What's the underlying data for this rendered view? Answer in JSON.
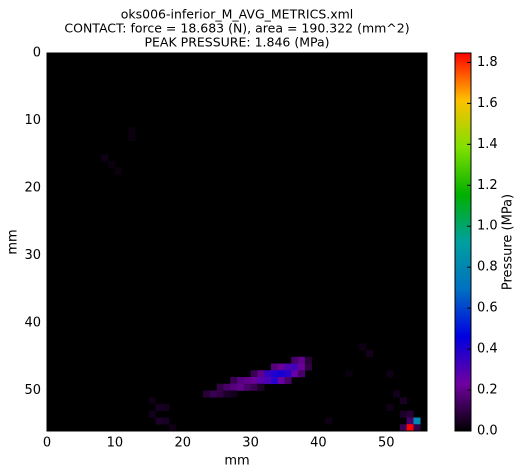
{
  "chart_data": {
    "type": "heatmap",
    "title_lines": [
      "oks006-inferior_M_AVG_METRICS.xml",
      "CONTACT: force = 18.683 (N), area = 190.322 (mm^2)",
      "PEAK PRESSURE: 1.846 (MPa)"
    ],
    "xlabel": "mm",
    "ylabel": "mm",
    "colorbar_label": "Pressure (MPa)",
    "xlim": [
      0,
      56
    ],
    "ylim": [
      56,
      0
    ],
    "xticks": [
      0,
      10,
      20,
      30,
      40,
      50
    ],
    "yticks": [
      0,
      10,
      20,
      30,
      40,
      50
    ],
    "clim": [
      0,
      1.846
    ],
    "cticks": [
      {
        "value": 0,
        "label": "0.0"
      },
      {
        "value": 0.2,
        "label": "0.2"
      },
      {
        "value": 0.4,
        "label": "0.4"
      },
      {
        "value": 0.6,
        "label": "0.6"
      },
      {
        "value": 0.8,
        "label": "0.8"
      },
      {
        "value": 1.0,
        "label": "1.0"
      },
      {
        "value": 1.2,
        "label": "1.2"
      },
      {
        "value": 1.4,
        "label": "1.4"
      },
      {
        "value": 1.6,
        "label": "1.6"
      },
      {
        "value": 1.8,
        "label": "1.8"
      }
    ],
    "colormap": [
      "#000000",
      "#7000a0",
      "#0000e0",
      "#0070c0",
      "#00a0a0",
      "#00b000",
      "#80e000",
      "#ffc000",
      "#ff0000"
    ],
    "cells": [
      {
        "x": 12,
        "y": 11,
        "v": 0.02
      },
      {
        "x": 12,
        "y": 12,
        "v": 0.02
      },
      {
        "x": 8,
        "y": 15,
        "v": 0.03
      },
      {
        "x": 9,
        "y": 16,
        "v": 0.02
      },
      {
        "x": 10,
        "y": 17,
        "v": 0.02
      },
      {
        "x": 36,
        "y": 45,
        "v": 0.15
      },
      {
        "x": 37,
        "y": 45,
        "v": 0.2
      },
      {
        "x": 38,
        "y": 45,
        "v": 0.08
      },
      {
        "x": 33,
        "y": 46,
        "v": 0.18
      },
      {
        "x": 34,
        "y": 46,
        "v": 0.22
      },
      {
        "x": 35,
        "y": 46,
        "v": 0.3
      },
      {
        "x": 36,
        "y": 46,
        "v": 0.32
      },
      {
        "x": 37,
        "y": 46,
        "v": 0.22
      },
      {
        "x": 38,
        "y": 46,
        "v": 0.1
      },
      {
        "x": 30,
        "y": 47,
        "v": 0.12
      },
      {
        "x": 31,
        "y": 47,
        "v": 0.2
      },
      {
        "x": 32,
        "y": 47,
        "v": 0.35
      },
      {
        "x": 33,
        "y": 47,
        "v": 0.4
      },
      {
        "x": 34,
        "y": 47,
        "v": 0.42
      },
      {
        "x": 35,
        "y": 47,
        "v": 0.38
      },
      {
        "x": 36,
        "y": 47,
        "v": 0.25
      },
      {
        "x": 37,
        "y": 47,
        "v": 0.15
      },
      {
        "x": 27,
        "y": 48,
        "v": 0.12
      },
      {
        "x": 28,
        "y": 48,
        "v": 0.18
      },
      {
        "x": 29,
        "y": 48,
        "v": 0.2
      },
      {
        "x": 30,
        "y": 48,
        "v": 0.22
      },
      {
        "x": 31,
        "y": 48,
        "v": 0.28
      },
      {
        "x": 32,
        "y": 48,
        "v": 0.3
      },
      {
        "x": 33,
        "y": 48,
        "v": 0.38
      },
      {
        "x": 34,
        "y": 48,
        "v": 0.25
      },
      {
        "x": 35,
        "y": 48,
        "v": 0.15
      },
      {
        "x": 25,
        "y": 49,
        "v": 0.1
      },
      {
        "x": 26,
        "y": 49,
        "v": 0.15
      },
      {
        "x": 27,
        "y": 49,
        "v": 0.18
      },
      {
        "x": 28,
        "y": 49,
        "v": 0.2
      },
      {
        "x": 29,
        "y": 49,
        "v": 0.15
      },
      {
        "x": 30,
        "y": 49,
        "v": 0.12
      },
      {
        "x": 31,
        "y": 49,
        "v": 0.06
      },
      {
        "x": 23,
        "y": 50,
        "v": 0.08
      },
      {
        "x": 24,
        "y": 50,
        "v": 0.12
      },
      {
        "x": 25,
        "y": 50,
        "v": 0.1
      },
      {
        "x": 26,
        "y": 50,
        "v": 0.06
      },
      {
        "x": 27,
        "y": 50,
        "v": 0.04
      },
      {
        "x": 15,
        "y": 51,
        "v": 0.03
      },
      {
        "x": 16,
        "y": 52,
        "v": 0.05
      },
      {
        "x": 17,
        "y": 52,
        "v": 0.04
      },
      {
        "x": 15,
        "y": 53,
        "v": 0.04
      },
      {
        "x": 16,
        "y": 54,
        "v": 0.06
      },
      {
        "x": 17,
        "y": 54,
        "v": 0.05
      },
      {
        "x": 18,
        "y": 55,
        "v": 0.03
      },
      {
        "x": 46,
        "y": 43,
        "v": 0.03
      },
      {
        "x": 47,
        "y": 44,
        "v": 0.04
      },
      {
        "x": 44,
        "y": 47,
        "v": 0.02
      },
      {
        "x": 50,
        "y": 47,
        "v": 0.03
      },
      {
        "x": 51,
        "y": 50,
        "v": 0.04
      },
      {
        "x": 52,
        "y": 51,
        "v": 0.05
      },
      {
        "x": 50,
        "y": 52,
        "v": 0.03
      },
      {
        "x": 52,
        "y": 53,
        "v": 0.06
      },
      {
        "x": 53,
        "y": 53,
        "v": 0.08
      },
      {
        "x": 53,
        "y": 54,
        "v": 0.15
      },
      {
        "x": 52,
        "y": 55,
        "v": 0.12
      },
      {
        "x": 54,
        "y": 54,
        "v": 0.8
      },
      {
        "x": 53,
        "y": 55,
        "v": 1.846
      },
      {
        "x": 54,
        "y": 55,
        "v": 0.1
      },
      {
        "x": 41,
        "y": 54,
        "v": 0.03
      }
    ]
  }
}
